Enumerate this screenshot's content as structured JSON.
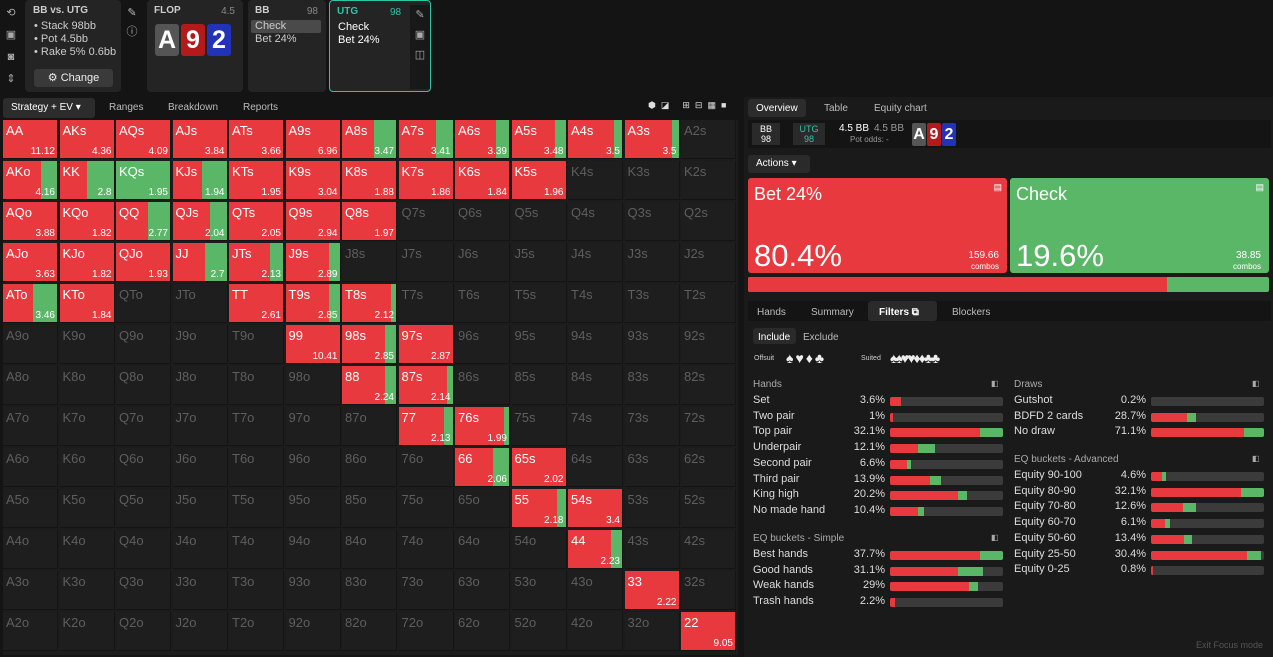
{
  "colors": {
    "bet": "#e8393f",
    "check": "#5bb768",
    "accent": "#2ec4a8"
  },
  "toolbar_icons": [
    "refresh-icon",
    "save-icon",
    "gamepad-icon",
    "text-height-icon"
  ],
  "settings": {
    "title": "BB vs. UTG",
    "lines": [
      "Stack 98bb",
      "Pot 4.5bb",
      "Rake 5% 0.6bb"
    ],
    "change": "Change"
  },
  "flop": {
    "title": "FLOP",
    "pot": "4.5",
    "cards": [
      "A",
      "9",
      "2"
    ]
  },
  "bb": {
    "title": "BB",
    "stack": "98",
    "lines": [
      "Check",
      "Bet 24%"
    ]
  },
  "utg": {
    "title": "UTG",
    "stack": "98",
    "lines": [
      "Check",
      "Bet 24%"
    ]
  },
  "tabs": [
    "Strategy + EV",
    "Ranges",
    "Breakdown",
    "Reports"
  ],
  "grid": [
    [
      [
        "AA",
        100,
        "11.12"
      ],
      [
        "AKs",
        100,
        "4.36"
      ],
      [
        "AQs",
        100,
        "4.09"
      ],
      [
        "AJs",
        100,
        "3.84"
      ],
      [
        "ATs",
        100,
        "3.66"
      ],
      [
        "A9s",
        100,
        "6.96"
      ],
      [
        "A8s",
        60,
        "3.47"
      ],
      [
        "A7s",
        70,
        "3.41"
      ],
      [
        "A6s",
        75,
        "3.39"
      ],
      [
        "A5s",
        80,
        "3.48"
      ],
      [
        "A4s",
        85,
        "3.5"
      ],
      [
        "A3s",
        88,
        "3.5"
      ],
      [
        "A2s",
        -1,
        ""
      ]
    ],
    [
      [
        "AKo",
        70,
        "4.16"
      ],
      [
        "KK",
        50,
        "2.8"
      ],
      [
        "KQs",
        0,
        "1.95"
      ],
      [
        "KJs",
        55,
        "1.94"
      ],
      [
        "KTs",
        100,
        "1.95"
      ],
      [
        "K9s",
        100,
        "3.04"
      ],
      [
        "K8s",
        100,
        "1.88"
      ],
      [
        "K7s",
        100,
        "1.86"
      ],
      [
        "K6s",
        100,
        "1.84"
      ],
      [
        "K5s",
        100,
        "1.96"
      ],
      [
        "K4s",
        -1,
        ""
      ],
      [
        "K3s",
        -1,
        ""
      ],
      [
        "K2s",
        -1,
        ""
      ]
    ],
    [
      [
        "AQo",
        100,
        "3.88"
      ],
      [
        "KQo",
        100,
        "1.82"
      ],
      [
        "QQ",
        60,
        "2.77"
      ],
      [
        "QJs",
        70,
        "2.04"
      ],
      [
        "QTs",
        100,
        "2.05"
      ],
      [
        "Q9s",
        100,
        "2.94"
      ],
      [
        "Q8s",
        100,
        "1.97"
      ],
      [
        "Q7s",
        -1,
        ""
      ],
      [
        "Q6s",
        -1,
        ""
      ],
      [
        "Q5s",
        -1,
        ""
      ],
      [
        "Q4s",
        -1,
        ""
      ],
      [
        "Q3s",
        -1,
        ""
      ],
      [
        "Q2s",
        -1,
        ""
      ]
    ],
    [
      [
        "AJo",
        100,
        "3.63"
      ],
      [
        "KJo",
        100,
        "1.82"
      ],
      [
        "QJo",
        100,
        "1.93"
      ],
      [
        "JJ",
        60,
        "2.7"
      ],
      [
        "JTs",
        75,
        "2.13"
      ],
      [
        "J9s",
        80,
        "2.89"
      ],
      [
        "J8s",
        -1,
        ""
      ],
      [
        "J7s",
        -1,
        ""
      ],
      [
        "J6s",
        -1,
        ""
      ],
      [
        "J5s",
        -1,
        ""
      ],
      [
        "J4s",
        -1,
        ""
      ],
      [
        "J3s",
        -1,
        ""
      ],
      [
        "J2s",
        -1,
        ""
      ]
    ],
    [
      [
        "ATo",
        55,
        "3.46"
      ],
      [
        "KTo",
        100,
        "1.84"
      ],
      [
        "QTo",
        -1,
        ""
      ],
      [
        "JTo",
        -1,
        ""
      ],
      [
        "TT",
        100,
        "2.61"
      ],
      [
        "T9s",
        80,
        "2.85"
      ],
      [
        "T8s",
        90,
        "2.12"
      ],
      [
        "T7s",
        -1,
        ""
      ],
      [
        "T6s",
        -1,
        ""
      ],
      [
        "T5s",
        -1,
        ""
      ],
      [
        "T4s",
        -1,
        ""
      ],
      [
        "T3s",
        -1,
        ""
      ],
      [
        "T2s",
        -1,
        ""
      ]
    ],
    [
      [
        "A9o",
        -1,
        ""
      ],
      [
        "K9o",
        -1,
        ""
      ],
      [
        "Q9o",
        -1,
        ""
      ],
      [
        "J9o",
        -1,
        ""
      ],
      [
        "T9o",
        -1,
        ""
      ],
      [
        "99",
        100,
        "10.41"
      ],
      [
        "98s",
        80,
        "2.85"
      ],
      [
        "97s",
        100,
        "2.87"
      ],
      [
        "96s",
        -1,
        ""
      ],
      [
        "95s",
        -1,
        ""
      ],
      [
        "94s",
        -1,
        ""
      ],
      [
        "93s",
        -1,
        ""
      ],
      [
        "92s",
        -1,
        ""
      ]
    ],
    [
      [
        "A8o",
        -1,
        ""
      ],
      [
        "K8o",
        -1,
        ""
      ],
      [
        "Q8o",
        -1,
        ""
      ],
      [
        "J8o",
        -1,
        ""
      ],
      [
        "T8o",
        -1,
        ""
      ],
      [
        "98o",
        -1,
        ""
      ],
      [
        "88",
        80,
        "2.24"
      ],
      [
        "87s",
        90,
        "2.14"
      ],
      [
        "86s",
        -1,
        ""
      ],
      [
        "85s",
        -1,
        ""
      ],
      [
        "84s",
        -1,
        ""
      ],
      [
        "83s",
        -1,
        ""
      ],
      [
        "82s",
        -1,
        ""
      ]
    ],
    [
      [
        "A7o",
        -1,
        ""
      ],
      [
        "K7o",
        -1,
        ""
      ],
      [
        "Q7o",
        -1,
        ""
      ],
      [
        "J7o",
        -1,
        ""
      ],
      [
        "T7o",
        -1,
        ""
      ],
      [
        "97o",
        -1,
        ""
      ],
      [
        "87o",
        -1,
        ""
      ],
      [
        "77",
        85,
        "2.13"
      ],
      [
        "76s",
        90,
        "1.99"
      ],
      [
        "75s",
        -1,
        ""
      ],
      [
        "74s",
        -1,
        ""
      ],
      [
        "73s",
        -1,
        ""
      ],
      [
        "72s",
        -1,
        ""
      ]
    ],
    [
      [
        "A6o",
        -1,
        ""
      ],
      [
        "K6o",
        -1,
        ""
      ],
      [
        "Q6o",
        -1,
        ""
      ],
      [
        "J6o",
        -1,
        ""
      ],
      [
        "T6o",
        -1,
        ""
      ],
      [
        "96o",
        -1,
        ""
      ],
      [
        "86o",
        -1,
        ""
      ],
      [
        "76o",
        -1,
        ""
      ],
      [
        "66",
        70,
        "2.06"
      ],
      [
        "65s",
        100,
        "2.02"
      ],
      [
        "64s",
        -1,
        ""
      ],
      [
        "63s",
        -1,
        ""
      ],
      [
        "62s",
        -1,
        ""
      ]
    ],
    [
      [
        "A5o",
        -1,
        ""
      ],
      [
        "K5o",
        -1,
        ""
      ],
      [
        "Q5o",
        -1,
        ""
      ],
      [
        "J5o",
        -1,
        ""
      ],
      [
        "T5o",
        -1,
        ""
      ],
      [
        "95o",
        -1,
        ""
      ],
      [
        "85o",
        -1,
        ""
      ],
      [
        "75o",
        -1,
        ""
      ],
      [
        "65o",
        -1,
        ""
      ],
      [
        "55",
        85,
        "2.18"
      ],
      [
        "54s",
        100,
        "3.4"
      ],
      [
        "53s",
        -1,
        ""
      ],
      [
        "52s",
        -1,
        ""
      ]
    ],
    [
      [
        "A4o",
        -1,
        ""
      ],
      [
        "K4o",
        -1,
        ""
      ],
      [
        "Q4o",
        -1,
        ""
      ],
      [
        "J4o",
        -1,
        ""
      ],
      [
        "T4o",
        -1,
        ""
      ],
      [
        "94o",
        -1,
        ""
      ],
      [
        "84o",
        -1,
        ""
      ],
      [
        "74o",
        -1,
        ""
      ],
      [
        "64o",
        -1,
        ""
      ],
      [
        "54o",
        -1,
        ""
      ],
      [
        "44",
        80,
        "2.23"
      ],
      [
        "43s",
        -1,
        ""
      ],
      [
        "42s",
        -1,
        ""
      ]
    ],
    [
      [
        "A3o",
        -1,
        ""
      ],
      [
        "K3o",
        -1,
        ""
      ],
      [
        "Q3o",
        -1,
        ""
      ],
      [
        "J3o",
        -1,
        ""
      ],
      [
        "T3o",
        -1,
        ""
      ],
      [
        "93o",
        -1,
        ""
      ],
      [
        "83o",
        -1,
        ""
      ],
      [
        "73o",
        -1,
        ""
      ],
      [
        "63o",
        -1,
        ""
      ],
      [
        "53o",
        -1,
        ""
      ],
      [
        "43o",
        -1,
        ""
      ],
      [
        "33",
        100,
        "2.22"
      ],
      [
        "32s",
        -1,
        ""
      ]
    ],
    [
      [
        "A2o",
        -1,
        ""
      ],
      [
        "K2o",
        -1,
        ""
      ],
      [
        "Q2o",
        -1,
        ""
      ],
      [
        "J2o",
        -1,
        ""
      ],
      [
        "T2o",
        -1,
        ""
      ],
      [
        "92o",
        -1,
        ""
      ],
      [
        "82o",
        -1,
        ""
      ],
      [
        "72o",
        -1,
        ""
      ],
      [
        "62o",
        -1,
        ""
      ],
      [
        "52o",
        -1,
        ""
      ],
      [
        "42o",
        -1,
        ""
      ],
      [
        "32o",
        -1,
        ""
      ],
      [
        "22",
        100,
        "9.05"
      ]
    ]
  ],
  "right_tabs": [
    "Overview",
    "Table",
    "Equity chart"
  ],
  "summary": {
    "bb_label": "BB",
    "bb_stack": "98",
    "utg_label": "UTG",
    "utg_stack": "98",
    "pot1": "4.5 BB",
    "pot2": "4.5 BB",
    "pot_odds": "Pot odds:  -"
  },
  "actions_label": "Actions",
  "bet": {
    "name": "Bet 24%",
    "pct": "80.4%",
    "combos": "159.66",
    "combos_label": "combos"
  },
  "check": {
    "name": "Check",
    "pct": "19.6%",
    "combos": "38.85",
    "combos_label": "combos"
  },
  "sub_tabs": [
    "Hands",
    "Summary",
    "Filters",
    "Blockers"
  ],
  "include": "Include",
  "exclude": "Exclude",
  "offsuit": "Offsuit",
  "suited": "Suited",
  "hands_title": "Hands",
  "hands": [
    [
      "Set",
      "3.6%",
      10,
      0
    ],
    [
      "Two pair",
      "1%",
      3,
      0
    ],
    [
      "Top pair",
      "32.1%",
      80,
      20
    ],
    [
      "Underpair",
      "12.1%",
      25,
      15
    ],
    [
      "Second pair",
      "6.6%",
      15,
      4
    ],
    [
      "Third pair",
      "13.9%",
      35,
      10
    ],
    [
      "King high",
      "20.2%",
      60,
      8
    ],
    [
      "No made hand",
      "10.4%",
      25,
      5
    ]
  ],
  "eqs_title": "EQ buckets - Simple",
  "eqs": [
    [
      "Best hands",
      "37.7%",
      80,
      20
    ],
    [
      "Good hands",
      "31.1%",
      60,
      22
    ],
    [
      "Weak hands",
      "29%",
      70,
      8
    ],
    [
      "Trash hands",
      "2.2%",
      4,
      0
    ]
  ],
  "draws_title": "Draws",
  "draws": [
    [
      "Gutshot",
      "0.2%",
      0,
      0
    ],
    [
      "BDFD 2 cards",
      "28.7%",
      32,
      8
    ],
    [
      "No draw",
      "71.1%",
      82,
      18
    ]
  ],
  "eqa_title": "EQ buckets - Advanced",
  "eqa": [
    [
      "Equity 90-100",
      "4.6%",
      10,
      3
    ],
    [
      "Equity 80-90",
      "32.1%",
      80,
      20
    ],
    [
      "Equity 70-80",
      "12.6%",
      28,
      12
    ],
    [
      "Equity 60-70",
      "6.1%",
      12,
      5
    ],
    [
      "Equity 50-60",
      "13.4%",
      29,
      7
    ],
    [
      "Equity 25-50",
      "30.4%",
      85,
      12
    ],
    [
      "Equity 0-25",
      "0.8%",
      2,
      0
    ]
  ],
  "exit": "Exit Focus mode"
}
